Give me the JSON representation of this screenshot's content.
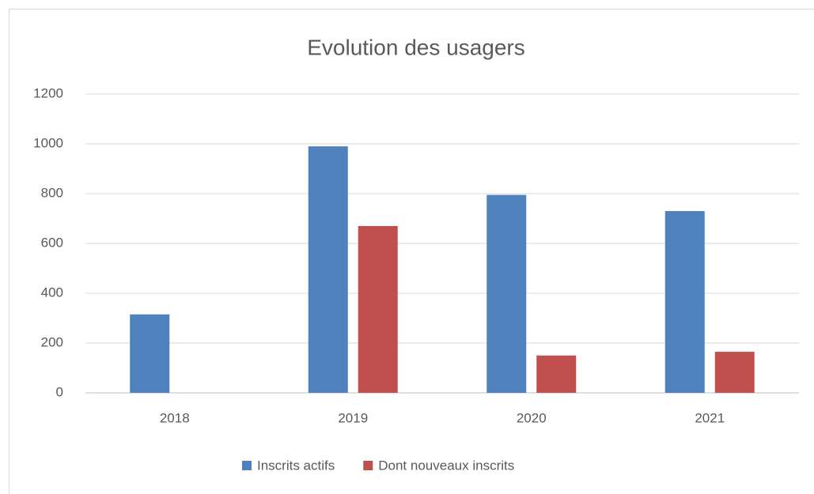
{
  "chart_data": {
    "type": "bar",
    "title": "Evolution des usagers",
    "categories": [
      "2018",
      "2019",
      "2020",
      "2021"
    ],
    "series": [
      {
        "name": "Inscrits actifs",
        "color": "#4f81bd",
        "values": [
          315,
          990,
          795,
          730
        ]
      },
      {
        "name": "Dont nouveaux inscrits",
        "color": "#c0504d",
        "values": [
          null,
          670,
          150,
          165
        ]
      }
    ],
    "ylim": [
      0,
      1200
    ],
    "yticks": [
      0,
      200,
      400,
      600,
      800,
      1000,
      1200
    ],
    "grid": true,
    "legend": "bottom"
  }
}
